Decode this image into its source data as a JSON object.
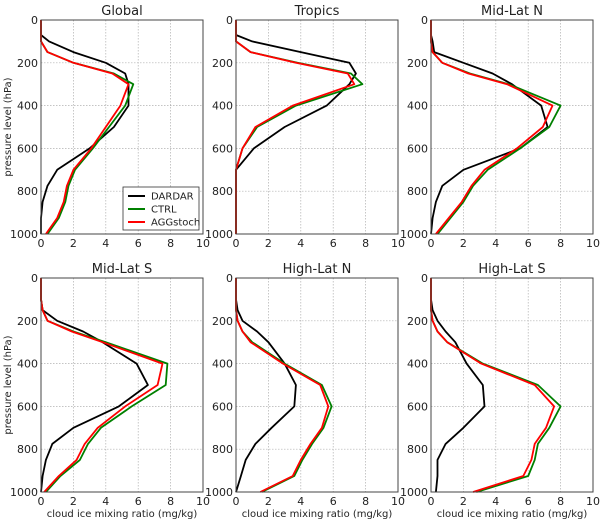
{
  "chart_data": {
    "type": "line",
    "xlabel": "cloud ice mixing ratio (mg/kg)",
    "ylabel": "pressure level (hPa)",
    "xlim": [
      0,
      10
    ],
    "ylim": [
      1000,
      0
    ],
    "xticks": [
      "0",
      "2",
      "4",
      "6",
      "8",
      "10"
    ],
    "yticks": [
      "0",
      "200",
      "400",
      "600",
      "800",
      "1000"
    ],
    "grid": true,
    "legend": {
      "panel": "Global",
      "placement": "lower-right",
      "entries": [
        "DARDAR",
        "CTRL",
        "AGGstoch"
      ]
    },
    "colors": {
      "DARDAR": "#000000",
      "CTRL": "#008000",
      "AGGstoch": "#ff0000"
    },
    "pressure": [
      0,
      70,
      100,
      150,
      200,
      250,
      300,
      400,
      500,
      600,
      700,
      775,
      850,
      925,
      1000
    ],
    "panels": [
      {
        "title": "Global",
        "series": [
          {
            "name": "DARDAR",
            "values": [
              0,
              0,
              0.5,
              2,
              4,
              5.2,
              5.4,
              5.4,
              4.5,
              3,
              1,
              0.4,
              0.1,
              0,
              0
            ]
          },
          {
            "name": "CTRL",
            "values": [
              0,
              0,
              0,
              0.4,
              2,
              4.5,
              5.7,
              5.2,
              4.2,
              3.2,
              2.1,
              1.7,
              1.5,
              1.1,
              0.4
            ]
          },
          {
            "name": "AGGstoch",
            "values": [
              0,
              0,
              0,
              0.4,
              2,
              4.4,
              5.4,
              4.9,
              4,
              3.1,
              2,
              1.6,
              1.4,
              1,
              0.3
            ]
          }
        ]
      },
      {
        "title": "Tropics",
        "series": [
          {
            "name": "DARDAR",
            "values": [
              0,
              0,
              1,
              4,
              7,
              7.4,
              7,
              5.6,
              3,
              1.1,
              0,
              0,
              0,
              0,
              0
            ]
          },
          {
            "name": "CTRL",
            "values": [
              0,
              0,
              0,
              0.9,
              3.8,
              7.1,
              7.8,
              3.7,
              1.3,
              0.4,
              0,
              0,
              0,
              0,
              0
            ]
          },
          {
            "name": "AGGstoch",
            "values": [
              0,
              0,
              0,
              0.9,
              3.7,
              6.9,
              7.3,
              3.5,
              1.2,
              0.4,
              0,
              0,
              0,
              0,
              0
            ]
          }
        ]
      },
      {
        "title": "Mid-Lat N",
        "series": [
          {
            "name": "DARDAR",
            "values": [
              0,
              0,
              0.1,
              0.2,
              2,
              3.8,
              5,
              6.8,
              7.2,
              5.5,
              2,
              0.7,
              0.3,
              0.1,
              0
            ]
          },
          {
            "name": "CTRL",
            "values": [
              0,
              0,
              0,
              0.1,
              0.7,
              2.4,
              4.8,
              8,
              7.3,
              5.5,
              3.5,
              2.6,
              2,
              1.2,
              0.4
            ]
          },
          {
            "name": "AGGstoch",
            "values": [
              0,
              0,
              0,
              0.1,
              0.7,
              2.3,
              4.7,
              7.5,
              6.9,
              5.3,
              3.3,
              2.5,
              1.9,
              1.1,
              0.3
            ]
          }
        ]
      },
      {
        "title": "Mid-Lat S",
        "series": [
          {
            "name": "DARDAR",
            "values": [
              0,
              0,
              0,
              0.1,
              1,
              2.6,
              3.8,
              5.9,
              6.6,
              4.8,
              2,
              0.7,
              0.3,
              0.1,
              0
            ]
          },
          {
            "name": "CTRL",
            "values": [
              0,
              0,
              0,
              0.1,
              0.4,
              2,
              4,
              7.8,
              7.7,
              5.6,
              3.7,
              2.9,
              2.4,
              1.2,
              0.3
            ]
          },
          {
            "name": "AGGstoch",
            "values": [
              0,
              0,
              0,
              0.1,
              0.4,
              1.9,
              3.8,
              7.5,
              7.2,
              5.2,
              3.5,
              2.7,
              2.2,
              1.1,
              0.2
            ]
          }
        ]
      },
      {
        "title": "High-Lat N",
        "series": [
          {
            "name": "DARDAR",
            "values": [
              0,
              0,
              0,
              0.1,
              0.4,
              1.3,
              2,
              3,
              3.7,
              3.6,
              2.2,
              1.2,
              0.6,
              0.3,
              0
            ]
          },
          {
            "name": "CTRL",
            "values": [
              0,
              0,
              0,
              0,
              0.1,
              0.4,
              1,
              3,
              5.3,
              5.9,
              5.4,
              4.7,
              4.1,
              3.6,
              1.6
            ]
          },
          {
            "name": "AGGstoch",
            "values": [
              0,
              0,
              0,
              0,
              0.1,
              0.4,
              0.9,
              2.9,
              5.2,
              5.7,
              5.3,
              4.6,
              4,
              3.5,
              1.5
            ]
          }
        ]
      },
      {
        "title": "High-Lat S",
        "series": [
          {
            "name": "DARDAR",
            "values": [
              0,
              0,
              0,
              0.1,
              0.4,
              0.9,
              1.5,
              2.2,
              3.2,
              3.3,
              2,
              0.9,
              0.4,
              0.4,
              0.3
            ]
          },
          {
            "name": "CTRL",
            "values": [
              0,
              0,
              0,
              0,
              0.1,
              0.4,
              1,
              3.2,
              6.6,
              8,
              7.3,
              6.6,
              6.4,
              6,
              2.8
            ]
          },
          {
            "name": "AGGstoch",
            "values": [
              0,
              0,
              0,
              0,
              0.1,
              0.4,
              1,
              3.1,
              6.4,
              7.6,
              7.1,
              6.4,
              6.2,
              5.7,
              2.6
            ]
          }
        ]
      }
    ]
  }
}
